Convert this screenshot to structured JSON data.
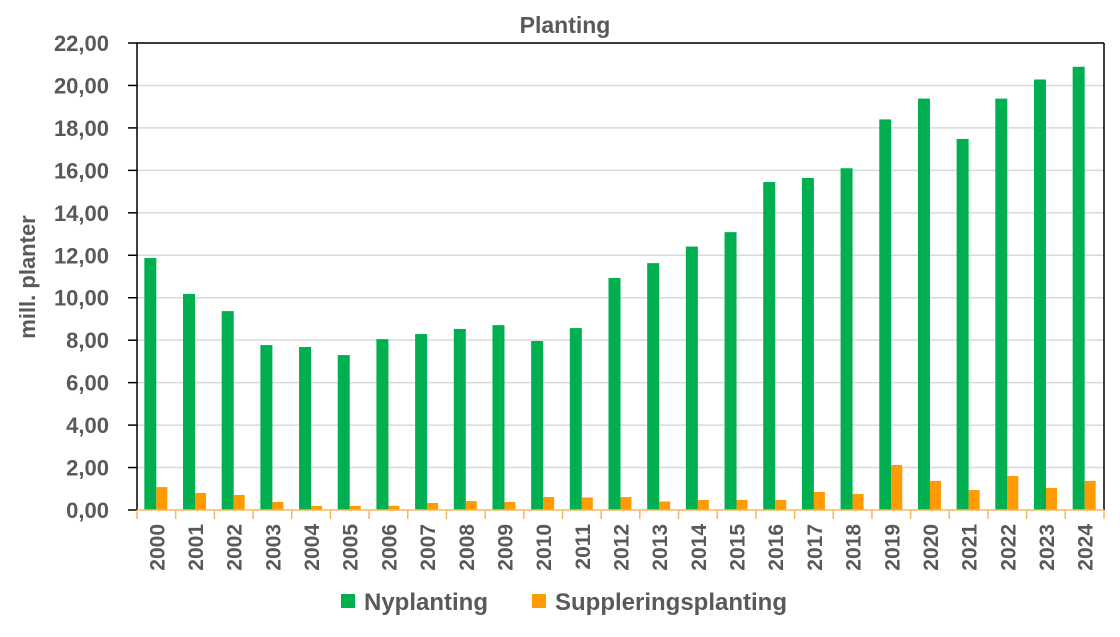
{
  "chart_data": {
    "type": "bar",
    "title": "Planting",
    "xlabel": "",
    "ylabel": "mill. planter",
    "ylim": [
      0,
      22
    ],
    "yticks": [
      0,
      2,
      4,
      6,
      8,
      10,
      12,
      14,
      16,
      18,
      20,
      22
    ],
    "ytick_labels": [
      "0,00",
      "2,00",
      "4,00",
      "6,00",
      "8,00",
      "10,00",
      "12,00",
      "14,00",
      "16,00",
      "18,00",
      "20,00",
      "22,00"
    ],
    "grid": true,
    "legend_position": "bottom",
    "categories": [
      "2000",
      "2001",
      "2002",
      "2003",
      "2004",
      "2005",
      "2006",
      "2007",
      "2008",
      "2009",
      "2010",
      "2011",
      "2012",
      "2013",
      "2014",
      "2015",
      "2016",
      "2017",
      "2018",
      "2019",
      "2020",
      "2021",
      "2022",
      "2023",
      "2024"
    ],
    "series": [
      {
        "name": "Nyplanting",
        "color": "#00B050",
        "values": [
          11.87,
          10.18,
          9.37,
          7.77,
          7.68,
          7.3,
          8.05,
          8.29,
          8.53,
          8.71,
          7.96,
          8.57,
          10.93,
          11.63,
          12.41,
          13.09,
          15.45,
          15.64,
          16.1,
          18.4,
          19.38,
          17.48,
          19.38,
          20.28,
          20.88
        ]
      },
      {
        "name": "Suppleringsplanting",
        "color": "#FF9A00",
        "values": [
          1.08,
          0.8,
          0.71,
          0.38,
          0.19,
          0.19,
          0.2,
          0.33,
          0.42,
          0.38,
          0.61,
          0.59,
          0.61,
          0.4,
          0.47,
          0.47,
          0.47,
          0.85,
          0.75,
          2.12,
          1.37,
          0.94,
          1.6,
          1.04,
          1.37
        ]
      }
    ]
  }
}
